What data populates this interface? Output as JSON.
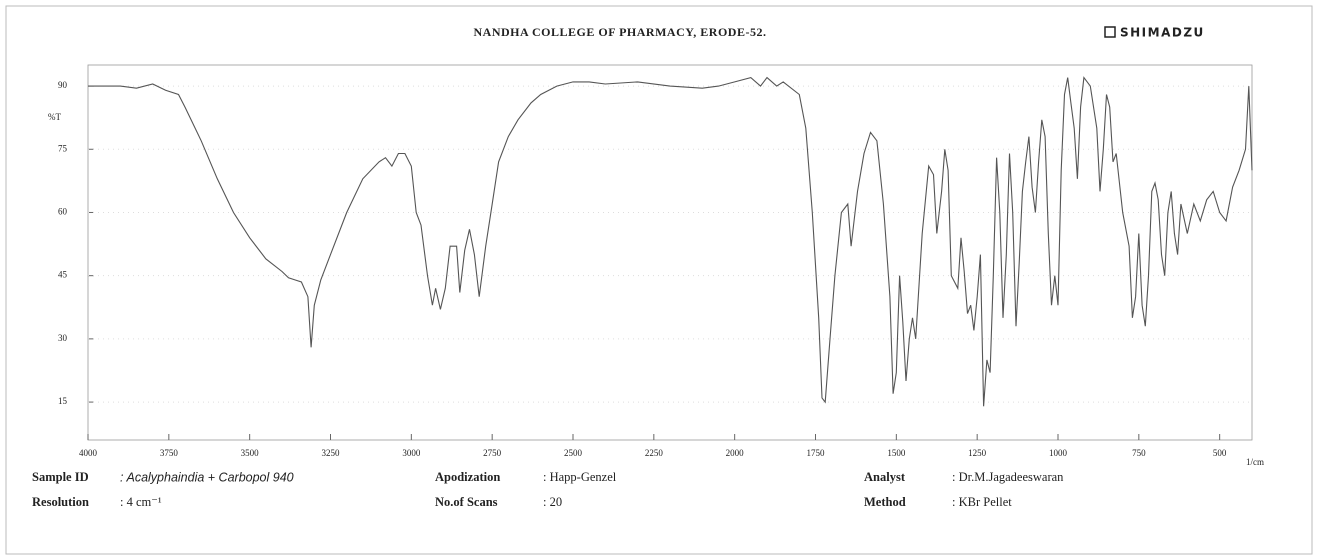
{
  "header": {
    "title": "NANDHA COLLEGE OF PHARMACY, ERODE-52.",
    "brand": "SHIMADZU"
  },
  "chart_data": {
    "type": "line",
    "y_label": "%T",
    "x_label": "1/cm",
    "color": "#555555",
    "xlim": [
      4000,
      400
    ],
    "ylim": [
      6,
      95
    ],
    "xticks": [
      4000,
      3750,
      3500,
      3250,
      3000,
      2750,
      2500,
      2250,
      2000,
      1750,
      1500,
      1250,
      1000,
      750,
      500
    ],
    "yticks": [
      15,
      30,
      45,
      60,
      75,
      90
    ],
    "x": [
      4000,
      3900,
      3850,
      3800,
      3760,
      3720,
      3700,
      3650,
      3600,
      3550,
      3500,
      3450,
      3400,
      3380,
      3360,
      3340,
      3320,
      3310,
      3300,
      3280,
      3250,
      3200,
      3150,
      3100,
      3080,
      3060,
      3040,
      3020,
      3000,
      2985,
      2970,
      2950,
      2935,
      2925,
      2910,
      2895,
      2880,
      2860,
      2850,
      2835,
      2820,
      2805,
      2790,
      2770,
      2750,
      2730,
      2700,
      2670,
      2630,
      2600,
      2550,
      2500,
      2450,
      2400,
      2300,
      2200,
      2100,
      2050,
      2000,
      1950,
      1920,
      1900,
      1870,
      1850,
      1800,
      1780,
      1760,
      1740,
      1730,
      1720,
      1705,
      1690,
      1670,
      1650,
      1640,
      1620,
      1600,
      1580,
      1560,
      1540,
      1520,
      1510,
      1500,
      1490,
      1480,
      1470,
      1460,
      1450,
      1440,
      1420,
      1400,
      1385,
      1375,
      1360,
      1350,
      1340,
      1330,
      1310,
      1300,
      1290,
      1280,
      1270,
      1260,
      1250,
      1240,
      1230,
      1220,
      1210,
      1200,
      1190,
      1180,
      1170,
      1160,
      1150,
      1140,
      1130,
      1120,
      1110,
      1100,
      1090,
      1080,
      1070,
      1060,
      1050,
      1040,
      1030,
      1020,
      1010,
      1000,
      990,
      980,
      970,
      960,
      950,
      940,
      930,
      920,
      900,
      880,
      870,
      860,
      850,
      840,
      830,
      820,
      800,
      780,
      770,
      760,
      750,
      740,
      730,
      720,
      710,
      700,
      690,
      680,
      670,
      660,
      650,
      640,
      630,
      620,
      600,
      580,
      560,
      540,
      520,
      500,
      480,
      460,
      440,
      420,
      410,
      400
    ],
    "y": [
      90,
      90,
      89.5,
      90.5,
      89,
      88,
      85,
      77,
      68,
      60,
      54,
      49,
      46,
      44.5,
      44,
      43.5,
      40,
      28,
      38,
      44,
      50,
      60,
      68,
      72,
      73,
      71,
      74,
      74,
      71,
      60,
      57,
      45,
      38,
      42,
      37,
      42,
      52,
      52,
      41,
      51,
      56,
      50,
      40,
      52,
      62,
      72,
      78,
      82,
      86,
      88,
      90,
      91,
      91,
      90.5,
      91,
      90,
      89.5,
      90,
      91,
      92,
      90,
      92,
      90,
      91,
      88,
      80,
      60,
      35,
      16,
      15,
      30,
      45,
      60,
      62,
      52,
      65,
      74,
      79,
      77,
      62,
      40,
      17,
      22,
      45,
      34,
      20,
      30,
      35,
      30,
      55,
      71,
      69,
      55,
      65,
      75,
      70,
      45,
      42,
      54,
      46,
      36,
      38,
      32,
      40,
      50,
      14,
      25,
      22,
      45,
      73,
      60,
      35,
      50,
      74,
      60,
      33,
      48,
      65,
      72,
      78,
      66,
      60,
      72,
      82,
      78,
      55,
      38,
      45,
      38,
      70,
      88,
      92,
      86,
      80,
      68,
      85,
      92,
      90,
      80,
      65,
      75,
      88,
      85,
      72,
      74,
      60,
      52,
      35,
      40,
      55,
      38,
      33,
      45,
      65,
      67,
      63,
      50,
      45,
      60,
      65,
      55,
      50,
      62,
      55,
      62,
      58,
      63,
      65,
      60,
      58,
      66,
      70,
      75,
      90,
      70
    ]
  },
  "fields": [
    {
      "label": "Sample ID",
      "value": ": Acalyphaindia + Carbopol 940"
    },
    {
      "label": "Apodization",
      "value": ": Happ-Genzel"
    },
    {
      "label": "Analyst",
      "value": ": Dr.M.Jagadeeswaran"
    },
    {
      "label": "Resolution",
      "value": ": 4 cm⁻¹"
    },
    {
      "label": "No.of Scans",
      "value": ": 20"
    },
    {
      "label": "Method",
      "value": ": KBr Pellet"
    }
  ]
}
